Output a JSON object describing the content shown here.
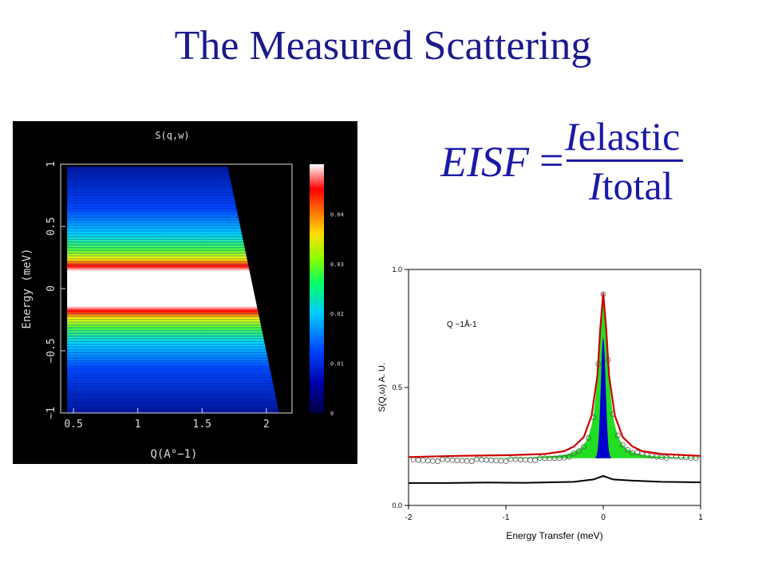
{
  "slide": {
    "title": "The Measured Scattering"
  },
  "equation": {
    "lhs": "EISF",
    "equals": "=",
    "num_var": "I",
    "num_sub": "elastic",
    "den_var": "I",
    "den_sub": "total"
  },
  "chart_data": [
    {
      "type": "heatmap",
      "title": "S(q,w)",
      "xlabel": "Q(A°−1)",
      "ylabel": "Energy (meV)",
      "xlim": [
        0.4,
        2.2
      ],
      "ylim": [
        -1,
        1
      ],
      "xticks": [
        "0.5",
        "1",
        "1.5",
        "2"
      ],
      "yticks": [
        "−1",
        "−0.5",
        "0",
        "0.5",
        "1"
      ],
      "colorbar": {
        "min": 0,
        "max": 0.05,
        "ticks": [
          "0",
          "0.01",
          "0.02",
          "0.03",
          "0.04"
        ]
      },
      "colors": {
        "background": "#000000",
        "axes": "#dddddd",
        "text": "#dddddd"
      }
    },
    {
      "type": "line",
      "xlabel": "Energy Transfer (meV)",
      "ylabel": "S(Q,ω) A. U.",
      "xlim": [
        -2,
        1
      ],
      "ylim": [
        0,
        1
      ],
      "xticks": [
        "-2",
        "-1",
        "0",
        "1"
      ],
      "yticks": [
        "0.0",
        "0.5",
        "1.0"
      ],
      "annotation": "Q ~1Å-1",
      "series": [
        {
          "color": "#cc0000",
          "values": [
            [
              -2,
              0.205
            ],
            [
              -1.5,
              0.21
            ],
            [
              -1,
              0.213
            ],
            [
              -0.6,
              0.218
            ],
            [
              -0.4,
              0.23
            ],
            [
              -0.3,
              0.25
            ],
            [
              -0.2,
              0.29
            ],
            [
              -0.12,
              0.38
            ],
            [
              -0.06,
              0.55
            ],
            [
              -0.03,
              0.75
            ],
            [
              0,
              0.9
            ],
            [
              0.03,
              0.75
            ],
            [
              0.06,
              0.55
            ],
            [
              0.12,
              0.38
            ],
            [
              0.2,
              0.29
            ],
            [
              0.3,
              0.25
            ],
            [
              0.4,
              0.23
            ],
            [
              0.6,
              0.218
            ],
            [
              1,
              0.21
            ]
          ]
        },
        {
          "color": "#000000",
          "values": [
            [
              -2,
              0.095
            ],
            [
              -1.6,
              0.095
            ],
            [
              -1.2,
              0.097
            ],
            [
              -0.8,
              0.096
            ],
            [
              -0.3,
              0.1
            ],
            [
              -0.1,
              0.11
            ],
            [
              0,
              0.125
            ],
            [
              0.1,
              0.11
            ],
            [
              0.3,
              0.105
            ],
            [
              0.6,
              0.1
            ],
            [
              1,
              0.098
            ]
          ]
        }
      ],
      "fills": [
        {
          "color": "#22dd22",
          "peak": 0.9,
          "base": 0.2
        },
        {
          "color": "#0000cc",
          "peak": 0.71,
          "base": 0.2
        }
      ]
    }
  ]
}
